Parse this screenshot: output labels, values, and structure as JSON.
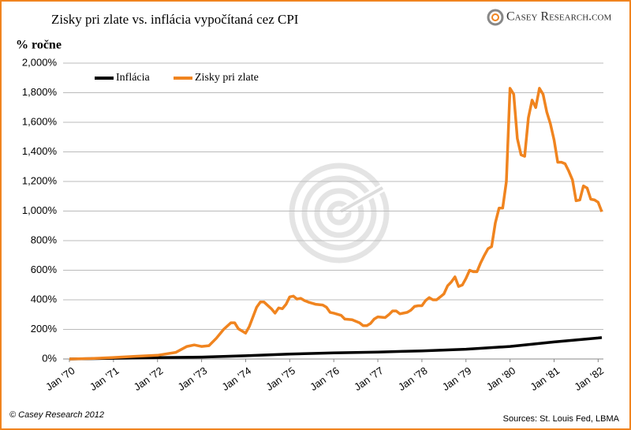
{
  "chart_data": {
    "type": "line",
    "title": "Zisky pri zlate vs. inflácia vypočítaná cez CPI",
    "y_label": "% ročne",
    "brand": "Casey Research.com",
    "copyright": "© Casey Research 2012",
    "source": "Sources: St. Louis Fed, LBMA",
    "xlim": [
      "1970-01",
      "1982-02"
    ],
    "xticks": [
      {
        "value": "1970-01",
        "label": "Jan '70"
      },
      {
        "value": "1971-01",
        "label": "Jan '71"
      },
      {
        "value": "1972-01",
        "label": "Jan '72"
      },
      {
        "value": "1973-01",
        "label": "Jan '73"
      },
      {
        "value": "1974-01",
        "label": "Jan '74"
      },
      {
        "value": "1975-01",
        "label": "Jan '75"
      },
      {
        "value": "1976-01",
        "label": "Jan '76"
      },
      {
        "value": "1977-01",
        "label": "Jan '77"
      },
      {
        "value": "1978-01",
        "label": "Jan '78"
      },
      {
        "value": "1979-01",
        "label": "Jan '79"
      },
      {
        "value": "1980-01",
        "label": "Jan '80"
      },
      {
        "value": "1981-01",
        "label": "Jan '81"
      },
      {
        "value": "1982-01",
        "label": "Jan '82"
      }
    ],
    "ylim": [
      0,
      2000
    ],
    "yticks": [
      {
        "value": 0,
        "label": "0%"
      },
      {
        "value": 200,
        "label": "200%"
      },
      {
        "value": 400,
        "label": "400%"
      },
      {
        "value": 600,
        "label": "600%"
      },
      {
        "value": 800,
        "label": "800%"
      },
      {
        "value": 1000,
        "label": "1,000%"
      },
      {
        "value": 1200,
        "label": "1,200%"
      },
      {
        "value": 1400,
        "label": "1,400%"
      },
      {
        "value": 1600,
        "label": "1,600%"
      },
      {
        "value": 1800,
        "label": "1,800%"
      },
      {
        "value": 2000,
        "label": "2,000%"
      }
    ],
    "grid": true,
    "legend": "top-left",
    "series": [
      {
        "name": "Inflácia",
        "color": "#000000",
        "x": [
          "1970-01",
          "1971-01",
          "1972-01",
          "1973-01",
          "1974-01",
          "1975-01",
          "1976-01",
          "1977-01",
          "1978-01",
          "1979-01",
          "1980-01",
          "1981-01",
          "1982-01",
          "1982-02"
        ],
        "values": [
          0,
          5,
          9,
          13,
          22,
          33,
          41,
          47,
          55,
          66,
          85,
          115,
          142,
          145
        ]
      },
      {
        "name": "Zisky pri zlate",
        "color": "#f0841f",
        "x": [
          "1970-01",
          "1970-07",
          "1971-01",
          "1971-07",
          "1972-01",
          "1972-06",
          "1972-09",
          "1972-11",
          "1973-01",
          "1973-03",
          "1973-05",
          "1973-07",
          "1973-09",
          "1973-10",
          "1973-11",
          "1974-01",
          "1974-02",
          "1974-04",
          "1974-05",
          "1974-06",
          "1974-08",
          "1974-09",
          "1974-10",
          "1974-11",
          "1974-12",
          "1975-01",
          "1975-02",
          "1975-03",
          "1975-04",
          "1975-05",
          "1975-06",
          "1975-08",
          "1975-10",
          "1975-11",
          "1975-12",
          "1976-01",
          "1976-03",
          "1976-04",
          "1976-06",
          "1976-08",
          "1976-09",
          "1976-10",
          "1976-11",
          "1976-12",
          "1977-01",
          "1977-03",
          "1977-04",
          "1977-05",
          "1977-06",
          "1977-07",
          "1977-09",
          "1977-10",
          "1977-11",
          "1977-12",
          "1978-01",
          "1978-02",
          "1978-03",
          "1978-04",
          "1978-05",
          "1978-06",
          "1978-07",
          "1978-08",
          "1978-09",
          "1978-10",
          "1978-11",
          "1978-12",
          "1979-01",
          "1979-02",
          "1979-03",
          "1979-04",
          "1979-05",
          "1979-06",
          "1979-07",
          "1979-08",
          "1979-09",
          "1979-10",
          "1979-11",
          "1979-12",
          "1980-01",
          "1980-02",
          "1980-03",
          "1980-04",
          "1980-05",
          "1980-06",
          "1980-07",
          "1980-08",
          "1980-09",
          "1980-10",
          "1980-11",
          "1980-12",
          "1981-01",
          "1981-02",
          "1981-03",
          "1981-04",
          "1981-05",
          "1981-06",
          "1981-07",
          "1981-08",
          "1981-09",
          "1981-10",
          "1981-11",
          "1981-12",
          "1982-01",
          "1982-02"
        ],
        "values": [
          0,
          3,
          10,
          18,
          25,
          45,
          85,
          95,
          85,
          90,
          140,
          200,
          245,
          245,
          205,
          175,
          220,
          350,
          385,
          385,
          340,
          310,
          345,
          340,
          370,
          420,
          425,
          405,
          410,
          395,
          385,
          370,
          365,
          350,
          315,
          310,
          295,
          270,
          265,
          245,
          225,
          225,
          240,
          270,
          285,
          280,
          300,
          325,
          325,
          305,
          315,
          330,
          355,
          360,
          360,
          395,
          415,
          400,
          400,
          420,
          440,
          495,
          520,
          555,
          490,
          500,
          545,
          600,
          590,
          590,
          650,
          700,
          745,
          760,
          920,
          1020,
          1020,
          1200,
          1830,
          1790,
          1490,
          1380,
          1370,
          1630,
          1750,
          1700,
          1830,
          1790,
          1670,
          1590,
          1480,
          1330,
          1330,
          1320,
          1270,
          1210,
          1070,
          1075,
          1170,
          1155,
          1080,
          1075,
          1060,
          995
        ]
      }
    ]
  }
}
